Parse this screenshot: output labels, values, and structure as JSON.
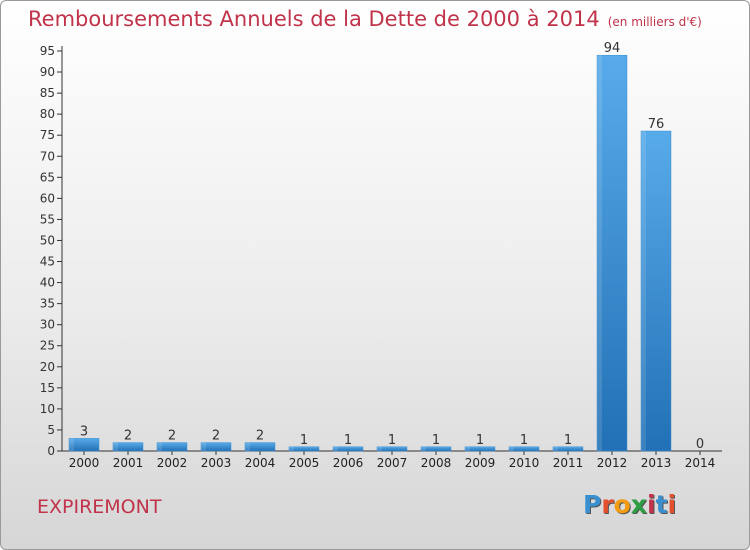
{
  "header": {
    "title": "Remboursements Annuels de la Dette de 2000 à 2014",
    "unit": "(en milliers d'€)"
  },
  "footer": {
    "town": "EXPIREMONT",
    "logo_letters": [
      "P",
      "r",
      "o",
      "x",
      "i",
      "t",
      "i"
    ],
    "logo_colors": [
      "#3a8fd1",
      "#e2502d",
      "#f39c12",
      "#2e9e44",
      "#c0334a",
      "#3a8fd1",
      "#e2502d"
    ]
  },
  "colors": {
    "bar": "#3b8fd6",
    "bar_light": "#5bacea",
    "bar_dark": "#2473b8",
    "title": "#c0334a"
  },
  "chart_data": {
    "type": "bar",
    "title": "Remboursements Annuels de la Dette de 2000 à 2014",
    "subtitle": "(en milliers d'€)",
    "categories": [
      "2000",
      "2001",
      "2002",
      "2003",
      "2004",
      "2005",
      "2006",
      "2007",
      "2008",
      "2009",
      "2010",
      "2011",
      "2012",
      "2013",
      "2014"
    ],
    "values": [
      3,
      2,
      2,
      2,
      2,
      1,
      1,
      1,
      1,
      1,
      1,
      1,
      94,
      76,
      0
    ],
    "data_labels": [
      "3",
      "2",
      "2",
      "2",
      "2",
      "1",
      "1",
      "1",
      "1",
      "1",
      "1",
      "1",
      "94",
      "76",
      "0"
    ],
    "ylim": [
      0,
      95
    ],
    "yticks": [
      0,
      5,
      10,
      15,
      20,
      25,
      30,
      35,
      40,
      45,
      50,
      55,
      60,
      65,
      70,
      75,
      80,
      85,
      90,
      95
    ],
    "grid": false
  }
}
